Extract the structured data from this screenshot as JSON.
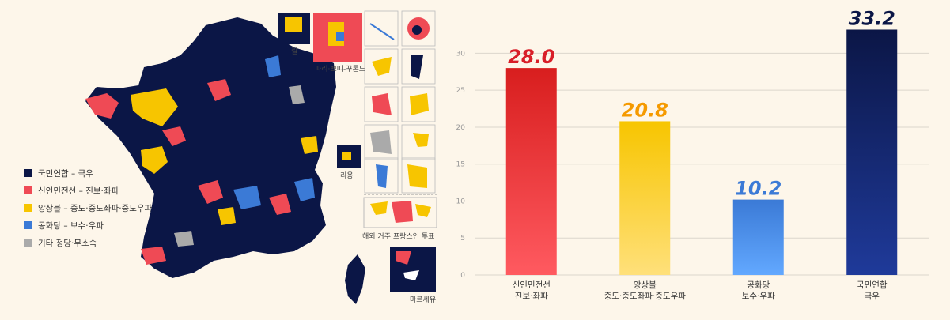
{
  "colors": {
    "rn": "#0b1646",
    "nfp": "#ef4a55",
    "ensemble": "#f7c500",
    "lr": "#3b7ad6",
    "other": "#aaaaaa",
    "background": "#fdf6ea"
  },
  "legend": [
    {
      "label": "국민연합 – 극우",
      "color": "#0b1646"
    },
    {
      "label": "신인민전선 – 진보·좌파",
      "color": "#ef4a55"
    },
    {
      "label": "앙상블 – 중도·중도좌파·중도우파",
      "color": "#f7c500"
    },
    {
      "label": "공화당 – 보수·우파",
      "color": "#3b7ad6"
    },
    {
      "label": "기타 정당·무소속",
      "color": "#aaaaaa"
    }
  ],
  "insets": {
    "lille": "릴",
    "paris": "파리·쁘띠-꾸론느",
    "reunion": "리용",
    "abroad": "해외 거주 프랑스인 투표",
    "marseille": "마르세유"
  },
  "chart_data": {
    "type": "bar",
    "categories": [
      {
        "line1": "신인민전선",
        "line2": "진보·좌파"
      },
      {
        "line1": "앙상블",
        "line2": "중도·중도좌파·중도우파"
      },
      {
        "line1": "공화당",
        "line2": "보수·우파"
      },
      {
        "line1": "국민연합",
        "line2": "극우"
      }
    ],
    "values": [
      28.0,
      20.8,
      10.2,
      33.2
    ],
    "value_labels": [
      "28.0",
      "20.8",
      "10.2",
      "33.2"
    ],
    "label_colors": [
      "#d81e28",
      "#f59a00",
      "#3b7ad6",
      "#0b1646"
    ],
    "bar_top_colors": [
      "#d81e1e",
      "#f7c500",
      "#3b7ad6",
      "#0b1646"
    ],
    "bar_bottom_colors": [
      "#ff5a60",
      "#ffe07a",
      "#62a8ff",
      "#1f3a9a"
    ],
    "yticks": [
      "0",
      "5",
      "10",
      "15",
      "20",
      "25",
      "30"
    ],
    "ylim": [
      0,
      34
    ],
    "grid": true
  }
}
